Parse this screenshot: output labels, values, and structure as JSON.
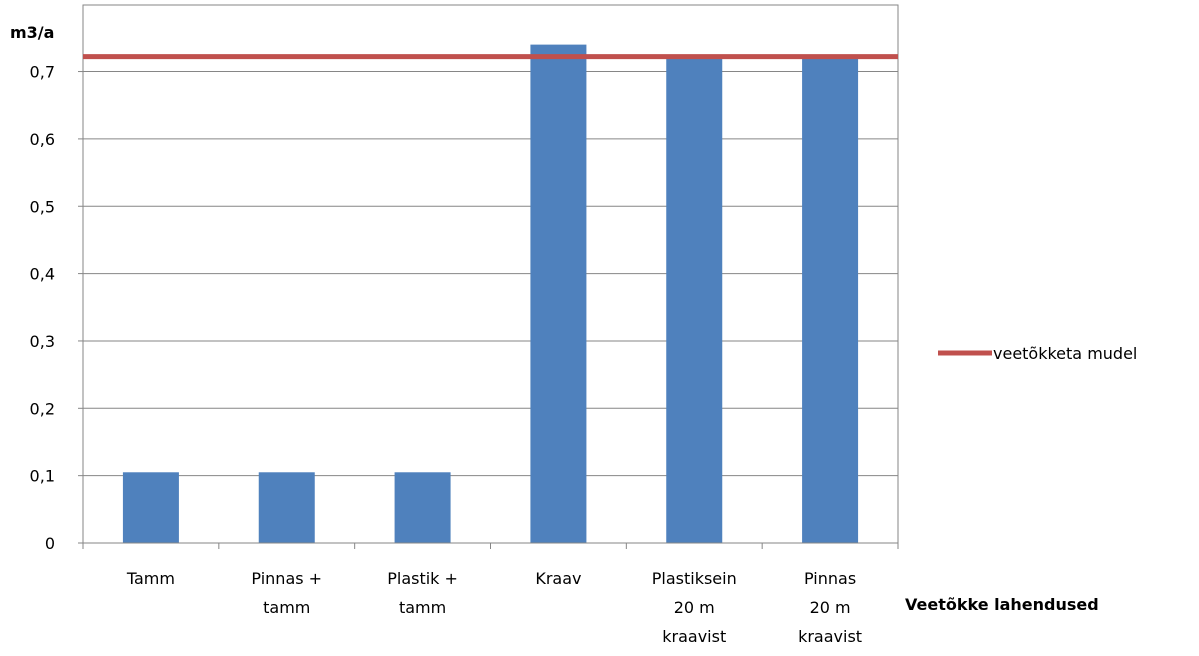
{
  "chart_data": {
    "type": "bar",
    "title": "",
    "xlabel": "Veetõkke lahendused",
    "ylabel": "m3/a",
    "ylim": [
      0,
      0.8
    ],
    "yticks": [
      0,
      0.1,
      0.2,
      0.3,
      0.4,
      0.5,
      0.6,
      0.7
    ],
    "ytick_labels": [
      "0",
      "0,1",
      "0,2",
      "0,3",
      "0,4",
      "0,5",
      "0,6",
      "0,7"
    ],
    "grid": true,
    "categories": [
      [
        "Tamm"
      ],
      [
        "Pinnas +",
        "tamm"
      ],
      [
        "Plastik +",
        "tamm"
      ],
      [
        "Kraav"
      ],
      [
        "Plastiksein",
        "20 m",
        "kraavist"
      ],
      [
        "Pinnas",
        "20 m",
        "kraavist"
      ]
    ],
    "series": [
      {
        "values": [
          0.105,
          0.105,
          0.105,
          0.74,
          0.72,
          0.72
        ],
        "color": "#4F81BD"
      }
    ],
    "reference_line": {
      "name": "veetõkketa mudel",
      "value": 0.72,
      "color": "#C0504D"
    },
    "legend_position": "right"
  }
}
